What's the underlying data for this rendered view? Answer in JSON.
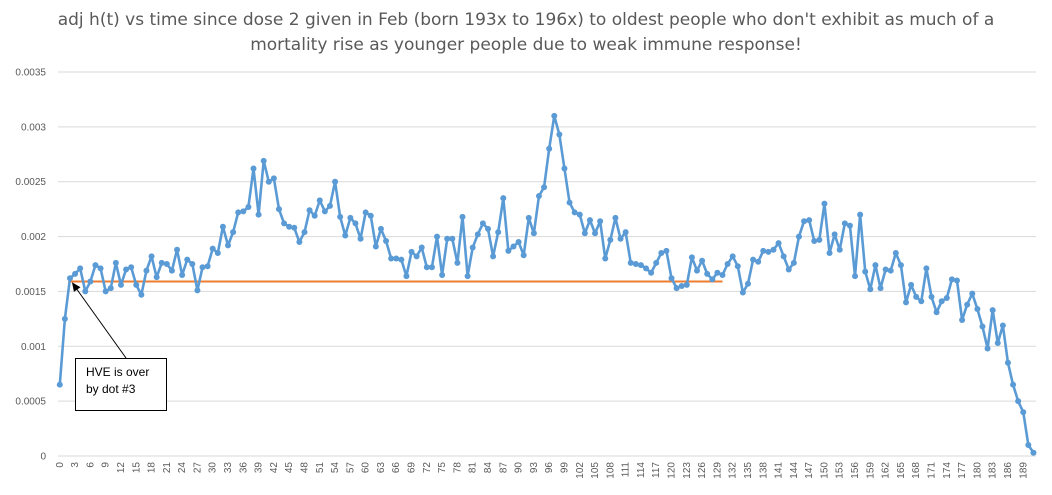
{
  "chart_data": {
    "type": "line",
    "title_lines": [
      "adj h(t) vs time since dose 2 given in Feb (born 193x to 196x) to oldest people who don't exhibit as much of a",
      "mortality rise as younger people due to weak immune response!"
    ],
    "xlabel": "",
    "ylabel": "",
    "ylim": [
      0,
      0.0035
    ],
    "y_ticks": [
      "0",
      "0.0005",
      "0.001",
      "0.0015",
      "0.002",
      "0.0025",
      "0.003",
      "0.0035"
    ],
    "x_tick_step": 3,
    "grid": "horizontal",
    "legend": "none",
    "x": [
      0,
      1,
      2,
      3,
      4,
      5,
      6,
      7,
      8,
      9,
      10,
      11,
      12,
      13,
      14,
      15,
      16,
      17,
      18,
      19,
      20,
      21,
      22,
      23,
      24,
      25,
      26,
      27,
      28,
      29,
      30,
      31,
      32,
      33,
      34,
      35,
      36,
      37,
      38,
      39,
      40,
      41,
      42,
      43,
      44,
      45,
      46,
      47,
      48,
      49,
      50,
      51,
      52,
      53,
      54,
      55,
      56,
      57,
      58,
      59,
      60,
      61,
      62,
      63,
      64,
      65,
      66,
      67,
      68,
      69,
      70,
      71,
      72,
      73,
      74,
      75,
      76,
      77,
      78,
      79,
      80,
      81,
      82,
      83,
      84,
      85,
      86,
      87,
      88,
      89,
      90,
      91,
      92,
      93,
      94,
      95,
      96,
      97,
      98,
      99,
      100,
      101,
      102,
      103,
      104,
      105,
      106,
      107,
      108,
      109,
      110,
      111,
      112,
      113,
      114,
      115,
      116,
      117,
      118,
      119,
      120,
      121,
      122,
      123,
      124,
      125,
      126,
      127,
      128,
      129,
      130,
      131,
      132,
      133,
      134,
      135,
      136,
      137,
      138,
      139,
      140,
      141,
      142,
      143,
      144,
      145,
      146,
      147,
      148,
      149,
      150,
      151,
      152,
      153,
      154,
      155,
      156,
      157,
      158,
      159,
      160,
      161,
      162,
      163,
      164,
      165,
      166,
      167,
      168,
      169,
      170,
      171,
      172,
      173,
      174,
      175,
      176,
      177,
      178,
      179,
      180,
      181,
      182,
      183,
      184,
      185,
      186,
      187,
      188,
      189,
      190,
      191
    ],
    "series": [
      {
        "color": "#5B9BD5",
        "values": [
          0.00065,
          0.00125,
          0.00162,
          0.00166,
          0.00171,
          0.0015,
          0.00159,
          0.00174,
          0.00171,
          0.0015,
          0.00153,
          0.00176,
          0.00156,
          0.0017,
          0.00172,
          0.00156,
          0.00147,
          0.00169,
          0.00182,
          0.00163,
          0.00176,
          0.00175,
          0.00169,
          0.00188,
          0.00165,
          0.00179,
          0.00175,
          0.00151,
          0.00172,
          0.00173,
          0.00189,
          0.00185,
          0.00209,
          0.00192,
          0.00204,
          0.00222,
          0.00223,
          0.00227,
          0.00262,
          0.0022,
          0.00269,
          0.0025,
          0.00253,
          0.00225,
          0.00212,
          0.00209,
          0.00208,
          0.00195,
          0.00204,
          0.00224,
          0.00219,
          0.00233,
          0.00223,
          0.00228,
          0.0025,
          0.00218,
          0.00201,
          0.00217,
          0.00212,
          0.00198,
          0.00222,
          0.00219,
          0.00191,
          0.00207,
          0.00196,
          0.0018,
          0.0018,
          0.00179,
          0.00164,
          0.00186,
          0.00182,
          0.0019,
          0.00172,
          0.00172,
          0.002,
          0.00165,
          0.00198,
          0.00198,
          0.00176,
          0.00218,
          0.00164,
          0.0019,
          0.00202,
          0.00212,
          0.00207,
          0.00182,
          0.00204,
          0.00235,
          0.00187,
          0.00191,
          0.00195,
          0.00183,
          0.00217,
          0.00203,
          0.00237,
          0.00245,
          0.0028,
          0.0031,
          0.00293,
          0.00262,
          0.00231,
          0.00222,
          0.0022,
          0.00203,
          0.00215,
          0.00203,
          0.00214,
          0.0018,
          0.00197,
          0.00217,
          0.00198,
          0.00204,
          0.00176,
          0.00175,
          0.00174,
          0.00171,
          0.00167,
          0.00176,
          0.00185,
          0.00187,
          0.00162,
          0.00153,
          0.00155,
          0.00156,
          0.00181,
          0.00169,
          0.00178,
          0.00166,
          0.00161,
          0.00167,
          0.00165,
          0.00175,
          0.00182,
          0.00173,
          0.00149,
          0.00157,
          0.00179,
          0.00177,
          0.00187,
          0.00186,
          0.00188,
          0.00194,
          0.00182,
          0.0017,
          0.00176,
          0.002,
          0.00214,
          0.00215,
          0.00196,
          0.00197,
          0.0023,
          0.00185,
          0.00202,
          0.00188,
          0.00212,
          0.0021,
          0.00164,
          0.0022,
          0.00168,
          0.00152,
          0.00174,
          0.00153,
          0.0017,
          0.00169,
          0.00185,
          0.00174,
          0.0014,
          0.00156,
          0.00145,
          0.00141,
          0.00171,
          0.00145,
          0.00131,
          0.00141,
          0.00144,
          0.00161,
          0.0016,
          0.00124,
          0.00138,
          0.00148,
          0.00134,
          0.00118,
          0.00098,
          0.00133,
          0.00103,
          0.00119,
          0.00085,
          0.00065,
          0.0005,
          0.0004,
          0.0001,
          3e-05
        ]
      }
    ],
    "reference_line": {
      "color": "#ED7D31",
      "value": 0.00159,
      "x_start": 2,
      "x_end": 130
    },
    "annotation": {
      "lines": [
        "HVE is over",
        "by dot #3"
      ],
      "points_to_x": 2
    }
  }
}
